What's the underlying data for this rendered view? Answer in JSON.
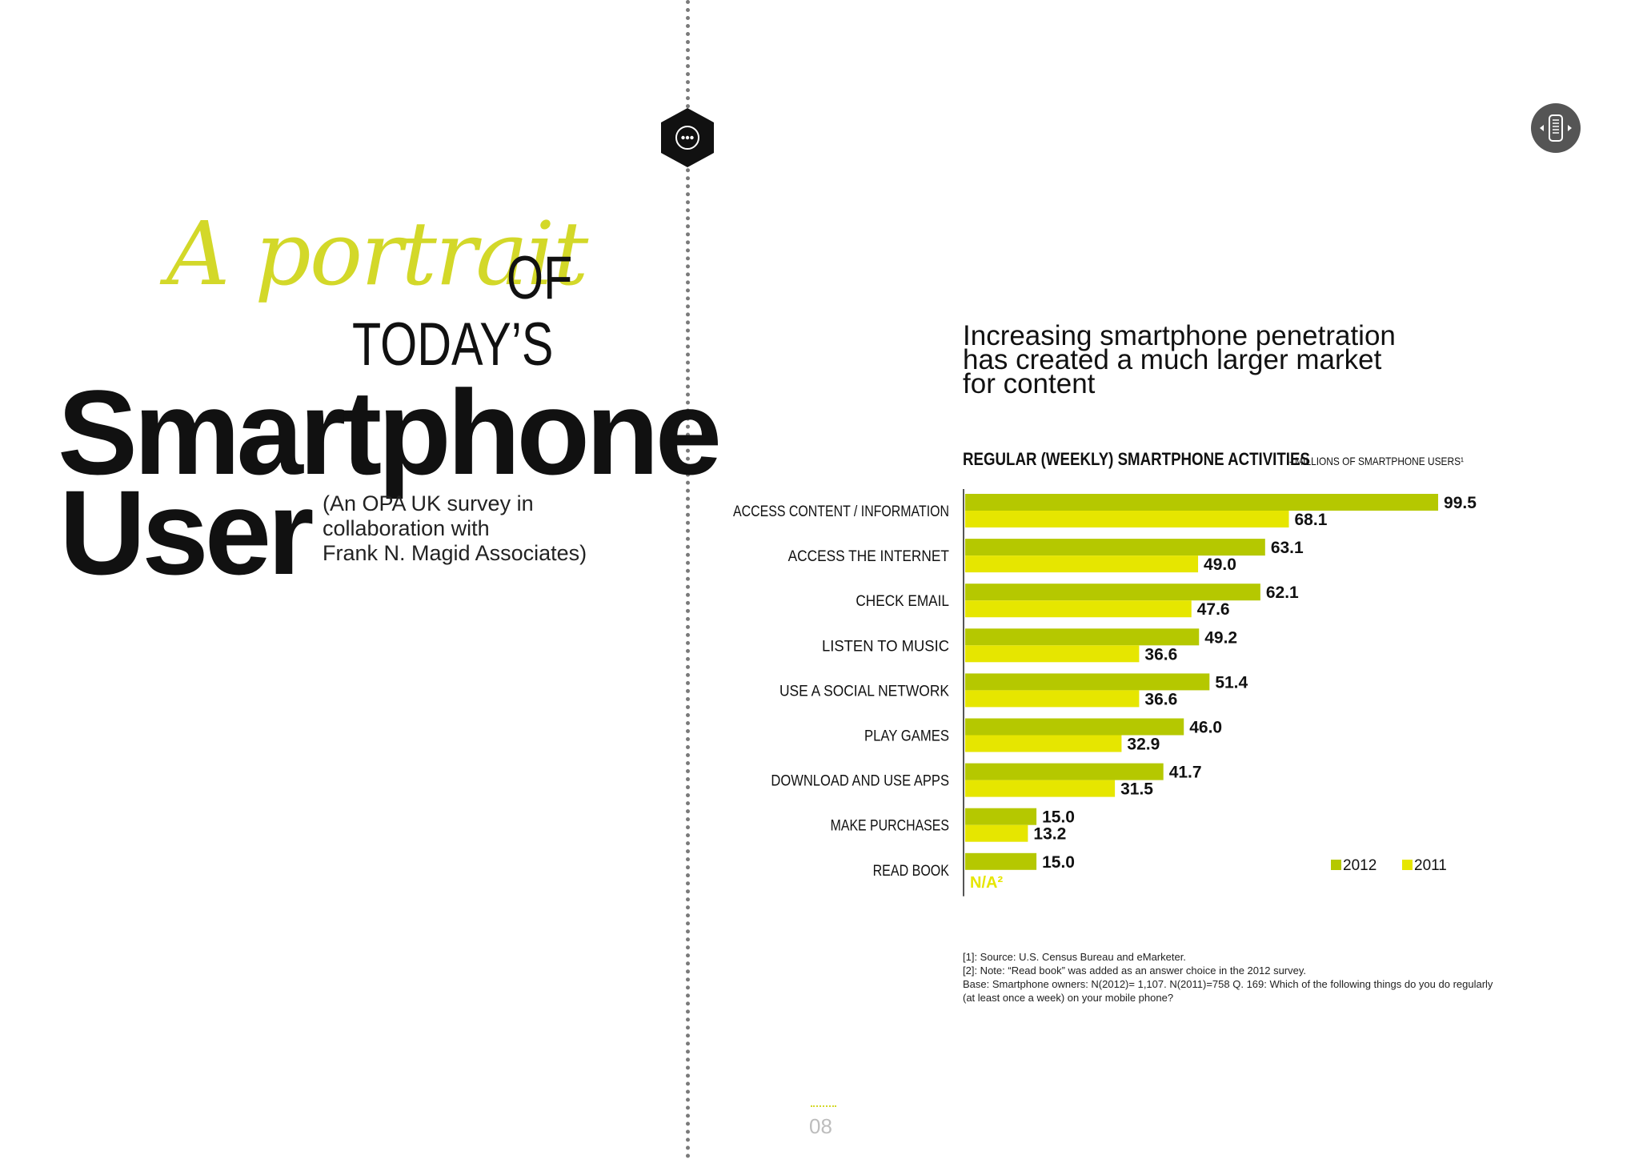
{
  "title": {
    "script": "A portrait",
    "of": "OF",
    "todays": "TODAY’S",
    "line1": "Smartphone",
    "line2": "User"
  },
  "survey_note": [
    "(An OPA UK survey in",
    "collaboration with",
    "Frank N. Magid Associates)"
  ],
  "headline": [
    "Increasing smartphone penetration",
    "has created a much larger market",
    "for content"
  ],
  "chart_heading": {
    "main": "REGULAR (WEEKLY) SMARTPHONE ACTIVITIES",
    "sub": "- MILLIONS OF SMARTPHONE USERS¹"
  },
  "chart_data": {
    "type": "bar",
    "orientation": "horizontal",
    "title": "REGULAR (WEEKLY) SMARTPHONE ACTIVITIES",
    "subtitle": "- MILLIONS OF SMARTPHONE USERS¹",
    "categories": [
      "ACCESS CONTENT / INFORMATION",
      "ACCESS THE INTERNET",
      "CHECK EMAIL",
      "LISTEN TO MUSIC",
      "USE A SOCIAL NETWORK",
      "PLAY GAMES",
      "DOWNLOAD AND USE APPS",
      "MAKE PURCHASES",
      "READ BOOK"
    ],
    "series": [
      {
        "name": "2012",
        "color": "#b5c800",
        "values": [
          99.5,
          63.1,
          62.1,
          49.2,
          51.4,
          46.0,
          41.7,
          15.0,
          15.0
        ],
        "labels": [
          "99.5",
          "63.1",
          "62.1",
          "49.2",
          "51.4",
          "46.0",
          "41.7",
          "15.0",
          "15.0"
        ]
      },
      {
        "name": "2011",
        "color": "#e6e600",
        "values": [
          68.1,
          49.0,
          47.6,
          36.6,
          36.6,
          32.9,
          31.5,
          13.2,
          null
        ],
        "labels": [
          "68.1",
          "49.0",
          "47.6",
          "36.6",
          "36.6",
          "32.9",
          "31.5",
          "13.2",
          "N/A²"
        ]
      }
    ],
    "xlim": [
      0,
      100
    ],
    "legend": "bottom-right",
    "grid": false
  },
  "footnotes": [
    "[1]: Source: U.S. Census Bureau and eMarketer.",
    "[2]: Note: “Read book” was added as an answer choice in the 2012 survey.",
    "Base: Smartphone owners: N(2012)= 1,107. N(2011)=758 Q. 169: Which of the following things do you do regularly",
    "(at least once a week) on your mobile phone?"
  ],
  "page_number": "08",
  "icons": {
    "hex_badge": "ellipsis-icon",
    "round_badge": "phone-icon"
  },
  "colors": {
    "accent": "#d3d829",
    "dark_badge": "#111111",
    "grey_badge": "#555555"
  }
}
